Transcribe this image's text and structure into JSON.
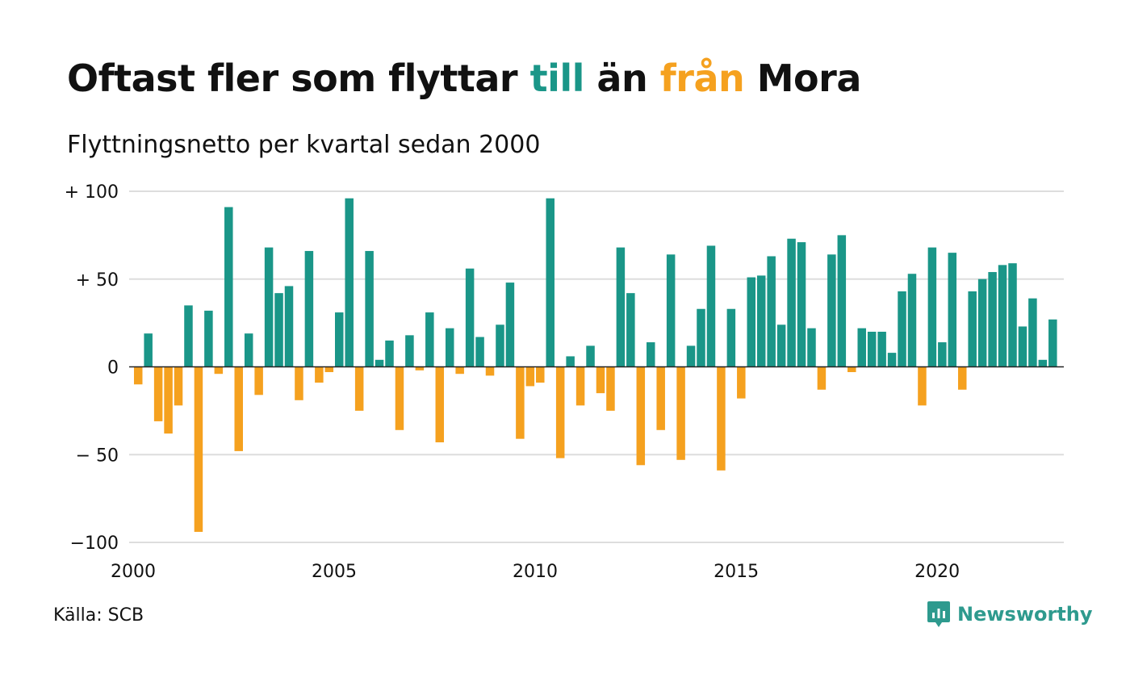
{
  "title": {
    "part1": "Oftast fler som flyttar ",
    "word_in": "till",
    "part2": " än ",
    "word_out": "från",
    "part3": " Mora"
  },
  "subtitle": "Flyttningsnetto per kvartal sedan 2000",
  "source": "Källa: SCB",
  "brand": {
    "name": "Newsworthy",
    "icon": "newsworthy-logo-icon"
  },
  "colors": {
    "positive": "#1a9688",
    "negative": "#f5a11f",
    "title_text": "#111111",
    "grid": "#dddddd",
    "baseline": "#222222",
    "brand": "#2e9a8e"
  },
  "chart_data": {
    "type": "bar",
    "title": "Oftast fler som flyttar till än från Mora",
    "subtitle": "Flyttningsnetto per kvartal sedan 2000",
    "xlabel": "",
    "ylabel": "",
    "x_start": 2000,
    "periods_per_year": 4,
    "xlim": [
      2000,
      2023.15
    ],
    "ylim": [
      -100,
      100
    ],
    "x_ticks": [
      2000,
      2005,
      2010,
      2015,
      2020
    ],
    "x_tick_labels": [
      "2000",
      "2005",
      "2010",
      "2015",
      "2020"
    ],
    "y_ticks": [
      100,
      50,
      0,
      -50,
      -100
    ],
    "y_tick_labels": [
      "+ 100",
      "+  50",
      "0",
      "− 50",
      "−100"
    ],
    "grid": true,
    "legend": "none",
    "values": [
      -10,
      19,
      -31,
      -38,
      -22,
      35,
      -94,
      32,
      -4,
      91,
      -48,
      19,
      -16,
      68,
      42,
      46,
      -19,
      66,
      -9,
      -3,
      31,
      96,
      -25,
      66,
      4,
      15,
      -36,
      18,
      -2,
      31,
      -43,
      22,
      -4,
      56,
      17,
      -5,
      24,
      48,
      -41,
      -11,
      -9,
      96,
      -52,
      6,
      -22,
      12,
      -15,
      -25,
      68,
      42,
      -56,
      14,
      -36,
      64,
      -53,
      12,
      33,
      69,
      -59,
      33,
      -18,
      51,
      52,
      63,
      24,
      73,
      71,
      22,
      -13,
      64,
      75,
      -3,
      22,
      20,
      20,
      8,
      43,
      53,
      -22,
      68,
      14,
      65,
      -13,
      43,
      50,
      54,
      58,
      59,
      23,
      39,
      4,
      27
    ]
  }
}
